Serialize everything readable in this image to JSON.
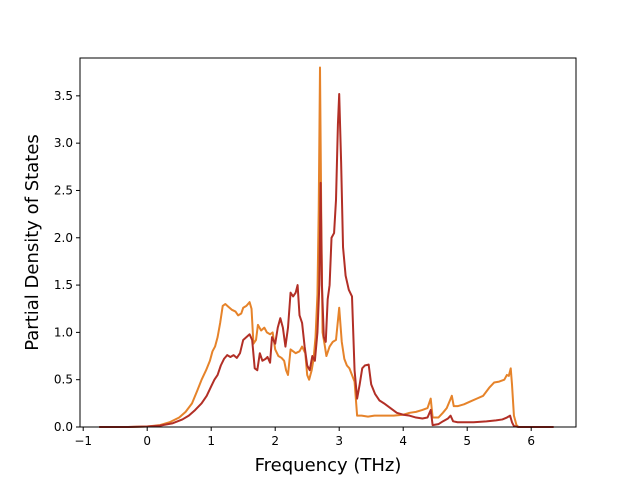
{
  "chart_data": {
    "type": "line",
    "title": "",
    "xlabel": "Frequency (THz)",
    "ylabel": "Partial Density of States",
    "xlim": [
      -1.05,
      6.7
    ],
    "ylim": [
      0,
      3.9
    ],
    "xticks": [
      -1,
      0,
      1,
      2,
      3,
      4,
      5,
      6
    ],
    "yticks": [
      0.0,
      0.5,
      1.0,
      1.5,
      2.0,
      2.5,
      3.0,
      3.5
    ],
    "xtick_labels": [
      "−1",
      "0",
      "1",
      "2",
      "3",
      "4",
      "5",
      "6"
    ],
    "ytick_labels": [
      "0.0",
      "0.5",
      "1.0",
      "1.5",
      "2.0",
      "2.5",
      "3.0",
      "3.5"
    ],
    "grid": false,
    "legend": "none",
    "series": [
      {
        "color": "#e6832a",
        "points": [
          [
            -0.75,
            0.0
          ],
          [
            -0.3,
            0.0
          ],
          [
            0.0,
            0.005
          ],
          [
            0.2,
            0.02
          ],
          [
            0.35,
            0.05
          ],
          [
            0.5,
            0.1
          ],
          [
            0.6,
            0.16
          ],
          [
            0.7,
            0.25
          ],
          [
            0.78,
            0.38
          ],
          [
            0.85,
            0.5
          ],
          [
            0.92,
            0.6
          ],
          [
            0.98,
            0.7
          ],
          [
            1.02,
            0.8
          ],
          [
            1.06,
            0.85
          ],
          [
            1.1,
            0.95
          ],
          [
            1.14,
            1.1
          ],
          [
            1.18,
            1.28
          ],
          [
            1.22,
            1.3
          ],
          [
            1.27,
            1.27
          ],
          [
            1.32,
            1.24
          ],
          [
            1.38,
            1.22
          ],
          [
            1.42,
            1.18
          ],
          [
            1.47,
            1.2
          ],
          [
            1.5,
            1.26
          ],
          [
            1.55,
            1.28
          ],
          [
            1.6,
            1.32
          ],
          [
            1.63,
            1.25
          ],
          [
            1.66,
            0.88
          ],
          [
            1.7,
            0.92
          ],
          [
            1.73,
            1.08
          ],
          [
            1.78,
            1.02
          ],
          [
            1.83,
            1.05
          ],
          [
            1.87,
            1.0
          ],
          [
            1.92,
            0.98
          ],
          [
            1.96,
            1.0
          ],
          [
            2.0,
            0.82
          ],
          [
            2.05,
            0.75
          ],
          [
            2.1,
            0.73
          ],
          [
            2.14,
            0.7
          ],
          [
            2.17,
            0.6
          ],
          [
            2.2,
            0.55
          ],
          [
            2.24,
            0.82
          ],
          [
            2.28,
            0.8
          ],
          [
            2.32,
            0.78
          ],
          [
            2.38,
            0.8
          ],
          [
            2.42,
            0.85
          ],
          [
            2.47,
            0.78
          ],
          [
            2.5,
            0.55
          ],
          [
            2.53,
            0.5
          ],
          [
            2.57,
            0.6
          ],
          [
            2.6,
            0.72
          ],
          [
            2.63,
            0.95
          ],
          [
            2.66,
            1.4
          ],
          [
            2.68,
            2.3
          ],
          [
            2.7,
            3.8
          ],
          [
            2.72,
            2.2
          ],
          [
            2.74,
            1.0
          ],
          [
            2.77,
            0.88
          ],
          [
            2.8,
            0.75
          ],
          [
            2.85,
            0.85
          ],
          [
            2.9,
            0.9
          ],
          [
            2.95,
            0.92
          ],
          [
            3.0,
            1.26
          ],
          [
            3.04,
            0.9
          ],
          [
            3.08,
            0.72
          ],
          [
            3.12,
            0.65
          ],
          [
            3.16,
            0.62
          ],
          [
            3.2,
            0.55
          ],
          [
            3.24,
            0.48
          ],
          [
            3.28,
            0.12
          ],
          [
            3.35,
            0.12
          ],
          [
            3.45,
            0.11
          ],
          [
            3.55,
            0.12
          ],
          [
            3.7,
            0.12
          ],
          [
            3.85,
            0.12
          ],
          [
            4.0,
            0.13
          ],
          [
            4.1,
            0.15
          ],
          [
            4.2,
            0.16
          ],
          [
            4.3,
            0.18
          ],
          [
            4.38,
            0.2
          ],
          [
            4.43,
            0.3
          ],
          [
            4.46,
            0.1
          ],
          [
            4.55,
            0.1
          ],
          [
            4.62,
            0.15
          ],
          [
            4.68,
            0.2
          ],
          [
            4.73,
            0.28
          ],
          [
            4.76,
            0.33
          ],
          [
            4.79,
            0.22
          ],
          [
            4.85,
            0.22
          ],
          [
            4.95,
            0.24
          ],
          [
            5.05,
            0.27
          ],
          [
            5.15,
            0.3
          ],
          [
            5.25,
            0.33
          ],
          [
            5.35,
            0.42
          ],
          [
            5.42,
            0.47
          ],
          [
            5.5,
            0.48
          ],
          [
            5.58,
            0.5
          ],
          [
            5.62,
            0.55
          ],
          [
            5.65,
            0.54
          ],
          [
            5.68,
            0.62
          ],
          [
            5.7,
            0.45
          ],
          [
            5.73,
            0.12
          ],
          [
            5.77,
            0.02
          ],
          [
            5.8,
            0.0
          ],
          [
            6.35,
            0.0
          ]
        ]
      },
      {
        "color": "#b22f26",
        "points": [
          [
            -0.75,
            0.0
          ],
          [
            -0.3,
            0.0
          ],
          [
            0.0,
            0.005
          ],
          [
            0.2,
            0.015
          ],
          [
            0.4,
            0.04
          ],
          [
            0.55,
            0.08
          ],
          [
            0.65,
            0.12
          ],
          [
            0.75,
            0.18
          ],
          [
            0.85,
            0.25
          ],
          [
            0.93,
            0.33
          ],
          [
            1.0,
            0.43
          ],
          [
            1.05,
            0.5
          ],
          [
            1.1,
            0.55
          ],
          [
            1.15,
            0.65
          ],
          [
            1.2,
            0.72
          ],
          [
            1.25,
            0.76
          ],
          [
            1.3,
            0.74
          ],
          [
            1.35,
            0.76
          ],
          [
            1.4,
            0.73
          ],
          [
            1.45,
            0.78
          ],
          [
            1.5,
            0.92
          ],
          [
            1.55,
            0.95
          ],
          [
            1.6,
            0.98
          ],
          [
            1.64,
            0.92
          ],
          [
            1.68,
            0.62
          ],
          [
            1.72,
            0.6
          ],
          [
            1.76,
            0.78
          ],
          [
            1.8,
            0.7
          ],
          [
            1.85,
            0.72
          ],
          [
            1.88,
            0.74
          ],
          [
            1.92,
            0.68
          ],
          [
            1.95,
            0.95
          ],
          [
            2.0,
            0.88
          ],
          [
            2.04,
            1.05
          ],
          [
            2.08,
            1.15
          ],
          [
            2.12,
            1.05
          ],
          [
            2.16,
            0.85
          ],
          [
            2.2,
            1.05
          ],
          [
            2.24,
            1.42
          ],
          [
            2.28,
            1.38
          ],
          [
            2.32,
            1.42
          ],
          [
            2.35,
            1.5
          ],
          [
            2.38,
            1.18
          ],
          [
            2.42,
            1.1
          ],
          [
            2.46,
            0.85
          ],
          [
            2.5,
            0.65
          ],
          [
            2.54,
            0.6
          ],
          [
            2.58,
            0.75
          ],
          [
            2.62,
            0.7
          ],
          [
            2.66,
            1.0
          ],
          [
            2.69,
            1.5
          ],
          [
            2.71,
            2.58
          ],
          [
            2.73,
            1.5
          ],
          [
            2.76,
            0.95
          ],
          [
            2.79,
            0.9
          ],
          [
            2.82,
            1.35
          ],
          [
            2.85,
            1.5
          ],
          [
            2.88,
            2.0
          ],
          [
            2.92,
            2.05
          ],
          [
            2.95,
            2.4
          ],
          [
            2.98,
            3.2
          ],
          [
            3.0,
            3.52
          ],
          [
            3.03,
            2.8
          ],
          [
            3.06,
            1.9
          ],
          [
            3.1,
            1.6
          ],
          [
            3.15,
            1.45
          ],
          [
            3.2,
            1.38
          ],
          [
            3.24,
            0.6
          ],
          [
            3.28,
            0.3
          ],
          [
            3.32,
            0.45
          ],
          [
            3.36,
            0.62
          ],
          [
            3.4,
            0.65
          ],
          [
            3.46,
            0.66
          ],
          [
            3.5,
            0.45
          ],
          [
            3.56,
            0.35
          ],
          [
            3.63,
            0.28
          ],
          [
            3.7,
            0.25
          ],
          [
            3.8,
            0.2
          ],
          [
            3.9,
            0.15
          ],
          [
            4.0,
            0.13
          ],
          [
            4.1,
            0.12
          ],
          [
            4.2,
            0.1
          ],
          [
            4.3,
            0.09
          ],
          [
            4.38,
            0.1
          ],
          [
            4.43,
            0.18
          ],
          [
            4.46,
            0.02
          ],
          [
            4.55,
            0.03
          ],
          [
            4.62,
            0.06
          ],
          [
            4.7,
            0.09
          ],
          [
            4.74,
            0.12
          ],
          [
            4.78,
            0.06
          ],
          [
            4.85,
            0.05
          ],
          [
            4.95,
            0.05
          ],
          [
            5.1,
            0.05
          ],
          [
            5.3,
            0.06
          ],
          [
            5.45,
            0.07
          ],
          [
            5.55,
            0.08
          ],
          [
            5.62,
            0.1
          ],
          [
            5.67,
            0.12
          ],
          [
            5.7,
            0.05
          ],
          [
            5.73,
            0.01
          ],
          [
            5.8,
            0.0
          ],
          [
            6.35,
            0.0
          ]
        ]
      }
    ]
  }
}
